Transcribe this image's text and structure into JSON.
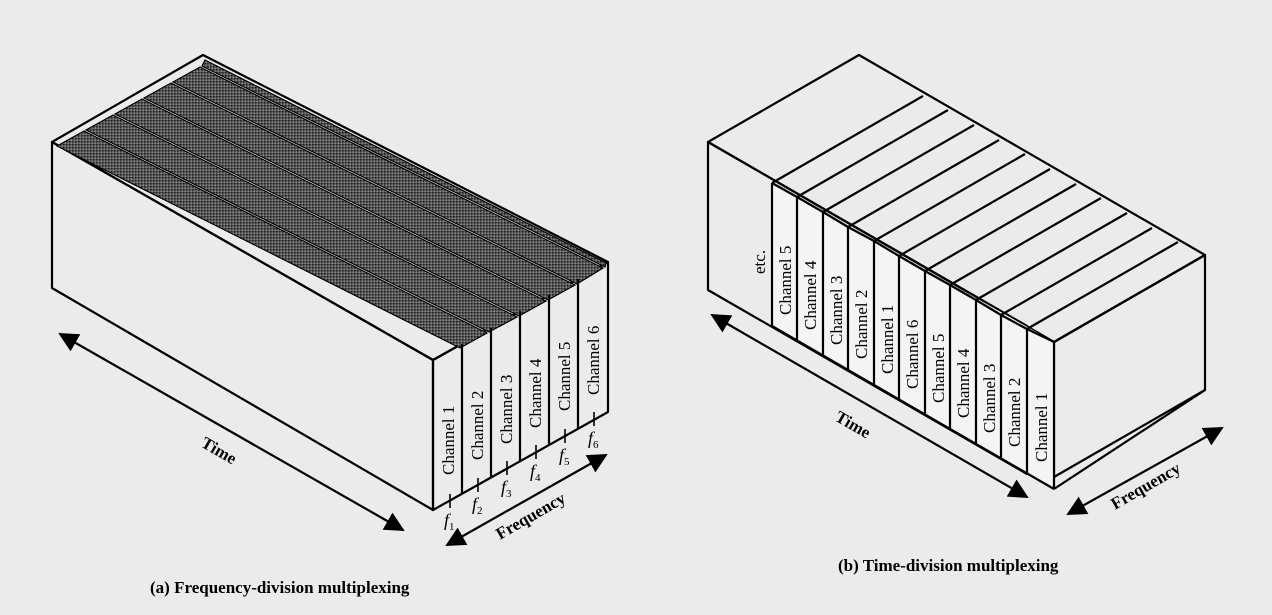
{
  "fdm": {
    "caption": "(a) Frequency-division multiplexing",
    "channels": [
      "Channel 1",
      "Channel 2",
      "Channel 3",
      "Channel 4",
      "Channel 5",
      "Channel 6"
    ],
    "freq_labels": [
      "f1",
      "f2",
      "f3",
      "f4",
      "f5",
      "f6"
    ],
    "time_label": "Time",
    "frequency_label": "Frequency"
  },
  "tdm": {
    "caption": "(b) Time-division multiplexing",
    "etc_label": "etc.",
    "channels": [
      "Channel 5",
      "Channel 4",
      "Channel 3",
      "Channel 2",
      "Channel 1",
      "Channel 6",
      "Channel 5",
      "Channel 4",
      "Channel 3",
      "Channel 2",
      "Channel 1"
    ],
    "time_label": "Time",
    "frequency_label": "Frequency"
  },
  "colors": {
    "background": "#ebebeb",
    "box_face": "#f4f4f4",
    "band_hatch": "#3a3a3a"
  }
}
